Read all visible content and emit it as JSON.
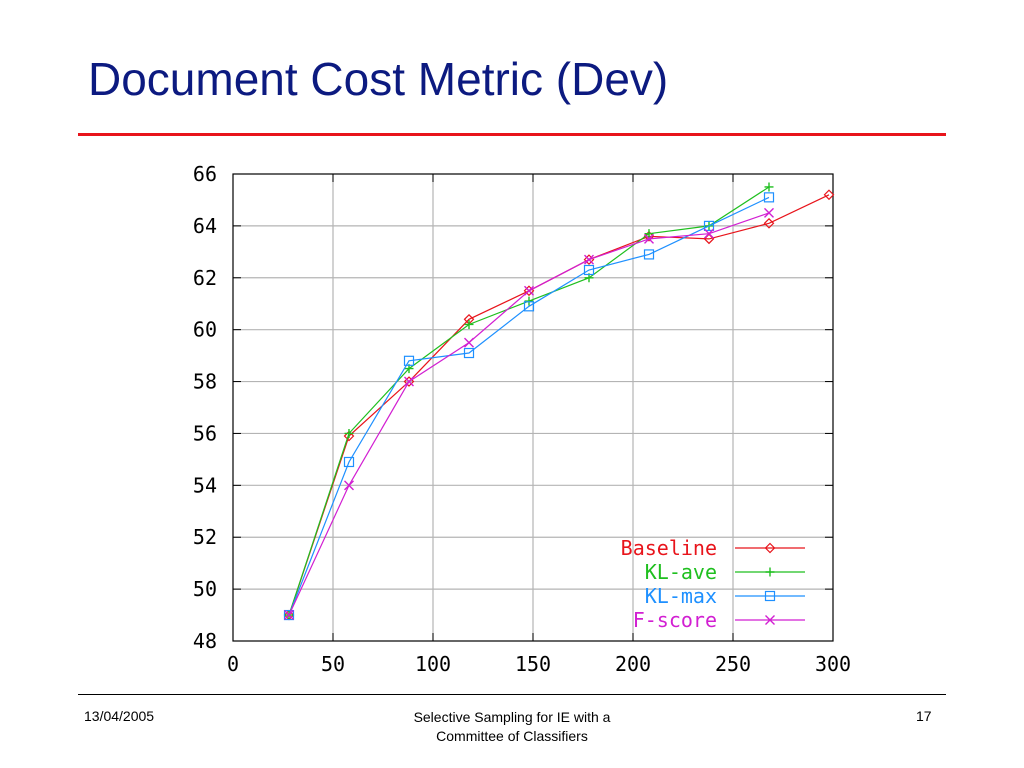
{
  "slide": {
    "title": "Document Cost Metric (Dev)",
    "footer": {
      "date": "13/04/2005",
      "center_line1": "Selective Sampling for IE with a",
      "center_line2": "Committee of Classifiers",
      "page": "17"
    }
  },
  "chart_data": {
    "type": "line",
    "title": "",
    "xlabel": "",
    "ylabel": "",
    "xlim": [
      0,
      300
    ],
    "ylim": [
      48,
      66
    ],
    "xticks": [
      0,
      50,
      100,
      150,
      200,
      250,
      300
    ],
    "yticks": [
      48,
      50,
      52,
      54,
      56,
      58,
      60,
      62,
      64,
      66
    ],
    "grid": true,
    "legend_position": "bottom-right",
    "series": [
      {
        "name": "Baseline",
        "color": "#e8141b",
        "marker": "diamond",
        "points": [
          [
            28,
            49.0
          ],
          [
            58,
            55.9
          ],
          [
            88,
            58.0
          ],
          [
            118,
            60.4
          ],
          [
            148,
            61.5
          ],
          [
            178,
            62.7
          ],
          [
            208,
            63.6
          ],
          [
            238,
            63.5
          ],
          [
            268,
            64.1
          ],
          [
            298,
            65.2
          ]
        ]
      },
      {
        "name": "KL-ave",
        "color": "#1fbf1f",
        "marker": "plus",
        "points": [
          [
            28,
            49.0
          ],
          [
            58,
            56.0
          ],
          [
            88,
            58.5
          ],
          [
            118,
            60.2
          ],
          [
            148,
            61.1
          ],
          [
            178,
            62.0
          ],
          [
            208,
            63.7
          ],
          [
            238,
            64.0
          ],
          [
            268,
            65.5
          ]
        ]
      },
      {
        "name": "KL-max",
        "color": "#1e90ff",
        "marker": "square",
        "points": [
          [
            28,
            49.0
          ],
          [
            58,
            54.9
          ],
          [
            88,
            58.8
          ],
          [
            118,
            59.1
          ],
          [
            148,
            60.9
          ],
          [
            178,
            62.3
          ],
          [
            208,
            62.9
          ],
          [
            238,
            64.0
          ],
          [
            268,
            65.1
          ]
        ]
      },
      {
        "name": "F-score",
        "color": "#d21fd2",
        "marker": "cross",
        "points": [
          [
            28,
            49.0
          ],
          [
            58,
            54.0
          ],
          [
            88,
            58.0
          ],
          [
            118,
            59.5
          ],
          [
            148,
            61.5
          ],
          [
            178,
            62.7
          ],
          [
            208,
            63.5
          ],
          [
            238,
            63.7
          ],
          [
            268,
            64.5
          ]
        ]
      }
    ]
  }
}
